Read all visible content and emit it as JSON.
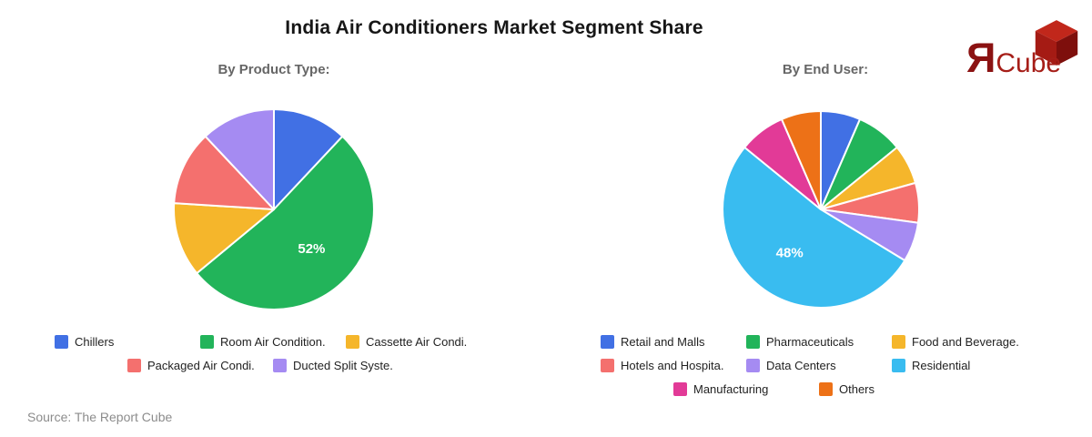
{
  "page": {
    "title": "India Air Conditioners Market Segment Share",
    "source": "Source: The Report Cube",
    "background": "#ffffff"
  },
  "logo": {
    "r_glyph": "Я",
    "cube_text": "Cube",
    "r_color": "#8B1212",
    "text_color": "#A61E18",
    "cube_face_top": "#C1271B",
    "cube_face_left": "#A51B14",
    "cube_face_right": "#7E0F0C"
  },
  "chart_data": [
    {
      "type": "pie",
      "title": "By Product Type:",
      "legend_position": "bottom",
      "legend_columns": 3,
      "labels": [
        "Chillers",
        "Room Air Condition.",
        "Cassette Air Condi.",
        "Packaged Air Condi.",
        "Ducted Split Syste."
      ],
      "values": [
        12,
        52,
        12,
        12,
        12
      ],
      "colors": [
        "#4170E4",
        "#22B45A",
        "#F5B62B",
        "#F4706E",
        "#A58BF2"
      ],
      "percent_label": {
        "text": "52%",
        "slice_index": 1,
        "color": "#ffffff"
      }
    },
    {
      "type": "pie",
      "title": "By End User:",
      "legend_position": "bottom",
      "legend_columns": 3,
      "labels": [
        "Retail and Malls",
        "Pharmaceuticals",
        "Food and Beverage.",
        "Hotels and Hospita.",
        "Data Centers",
        "Residential",
        "Manufacturing",
        "Others"
      ],
      "values": [
        6,
        7,
        6,
        6,
        6,
        48,
        7,
        6
      ],
      "colors": [
        "#4170E4",
        "#22B45A",
        "#F5B62B",
        "#F4706E",
        "#A58BF2",
        "#39BCF0",
        "#E23A97",
        "#ED7117"
      ],
      "percent_label": {
        "text": "48%",
        "slice_index": 5,
        "color": "#ffffff"
      }
    }
  ]
}
